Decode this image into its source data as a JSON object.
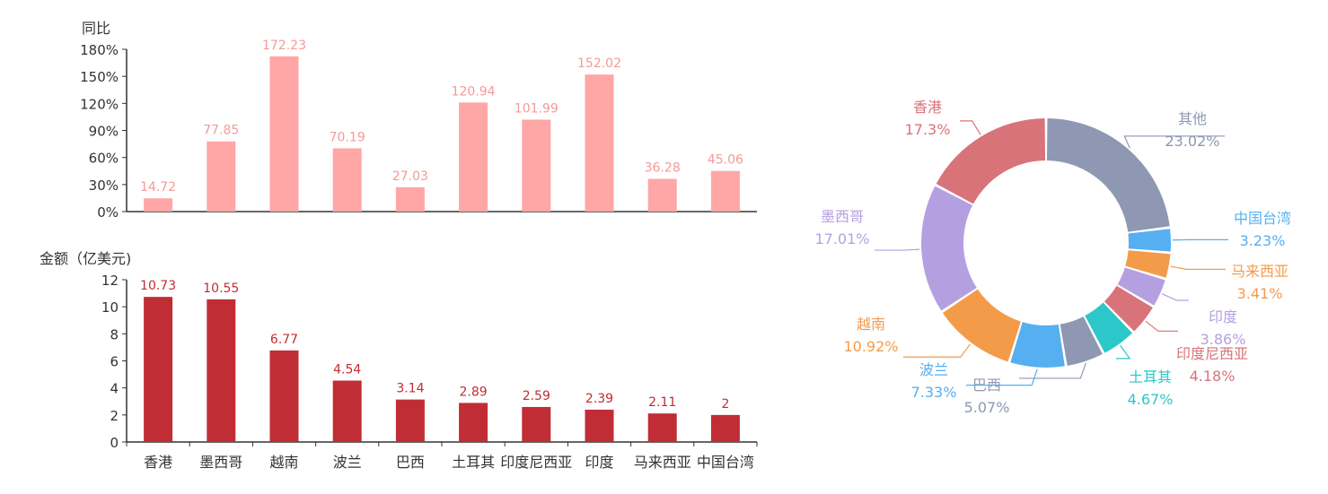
{
  "chart_data": [
    {
      "type": "bar",
      "ylabel": "同比",
      "categories": [
        "香港",
        "墨西哥",
        "越南",
        "波兰",
        "巴西",
        "土耳其",
        "印度尼西亚",
        "印度",
        "马来西亚",
        "中国台湾"
      ],
      "values": [
        14.72,
        77.85,
        172.23,
        70.19,
        27.03,
        120.94,
        101.99,
        152.02,
        36.28,
        45.06
      ],
      "yticks": [
        "0%",
        "30%",
        "60%",
        "90%",
        "120%",
        "150%",
        "180%"
      ],
      "ylim": [
        0,
        180
      ],
      "color": "#ffa6a6",
      "data_labels": true
    },
    {
      "type": "bar",
      "ylabel": "金额（亿美元)",
      "categories": [
        "香港",
        "墨西哥",
        "越南",
        "波兰",
        "巴西",
        "土耳其",
        "印度尼西亚",
        "印度",
        "马来西亚",
        "中国台湾"
      ],
      "values": [
        10.73,
        10.55,
        6.77,
        4.54,
        3.14,
        2.89,
        2.59,
        2.39,
        2.11,
        2
      ],
      "yticks": [
        "0",
        "2",
        "4",
        "6",
        "8",
        "10",
        "12"
      ],
      "ylim": [
        0,
        12
      ],
      "color": "#c12d35",
      "data_labels": true
    },
    {
      "type": "pie",
      "donut": true,
      "slices": [
        {
          "name": "其他",
          "value": 23.02,
          "label": "23.02%",
          "color": "#8e98b2"
        },
        {
          "name": "中国台湾",
          "value": 3.23,
          "label": "3.23%",
          "color": "#56aff0"
        },
        {
          "name": "马来西亚",
          "value": 3.41,
          "label": "3.41%",
          "color": "#f49b4a"
        },
        {
          "name": "印度",
          "value": 3.86,
          "label": "3.86%",
          "color": "#b4a0e0"
        },
        {
          "name": "印度尼西亚",
          "value": 4.18,
          "label": "4.18%",
          "color": "#d8737a"
        },
        {
          "name": "土耳其",
          "value": 4.67,
          "label": "4.67%",
          "color": "#2cc7c9"
        },
        {
          "name": "巴西",
          "value": 5.07,
          "label": "5.07%",
          "color": "#8e98b2"
        },
        {
          "name": "波兰",
          "value": 7.33,
          "label": "7.33%",
          "color": "#56aff0"
        },
        {
          "name": "越南",
          "value": 10.92,
          "label": "10.92%",
          "color": "#f49b4a"
        },
        {
          "name": "墨西哥",
          "value": 17.01,
          "label": "17.01%",
          "color": "#b4a0e0"
        },
        {
          "name": "香港",
          "value": 17.3,
          "label": "17.3%",
          "color": "#d8737a"
        }
      ]
    }
  ]
}
